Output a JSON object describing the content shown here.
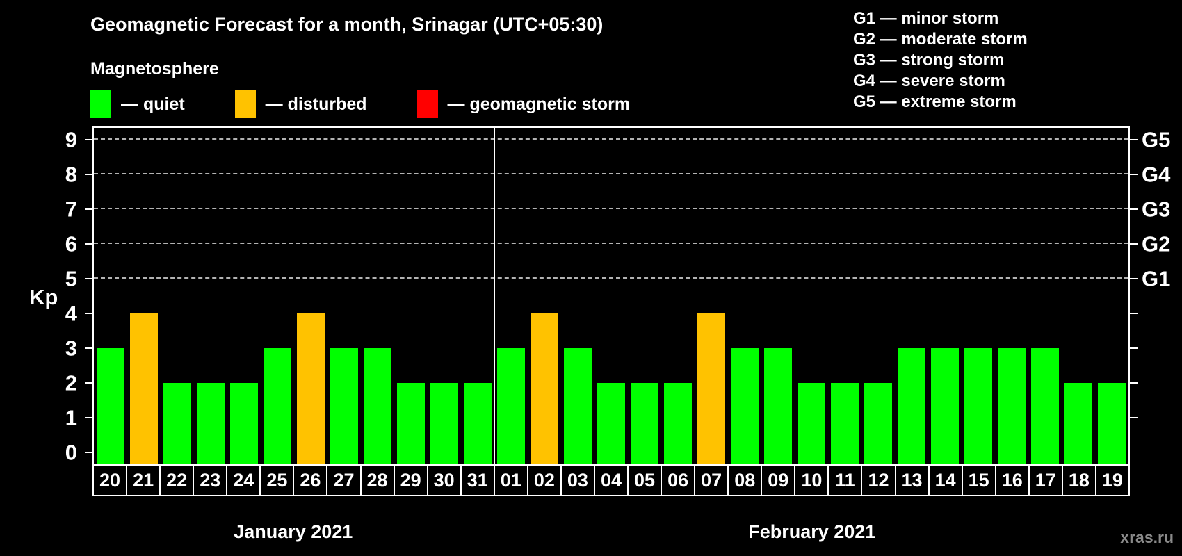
{
  "title": "Geomagnetic Forecast for a month, Srinagar (UTC+05:30)",
  "subtitle": "Magnetosphere",
  "joiner": "—",
  "legend": {
    "items": [
      {
        "name": "quiet",
        "label": "quiet",
        "color": "#00ff00"
      },
      {
        "name": "disturbed",
        "label": "disturbed",
        "color": "#ffc200"
      },
      {
        "name": "storm",
        "label": "geomagnetic storm",
        "color": "#ff0000"
      }
    ]
  },
  "storm_scale_legend": [
    {
      "code": "G1",
      "label": "minor storm"
    },
    {
      "code": "G2",
      "label": "moderate storm"
    },
    {
      "code": "G3",
      "label": "strong storm"
    },
    {
      "code": "G4",
      "label": "severe storm"
    },
    {
      "code": "G5",
      "label": "extreme storm"
    }
  ],
  "watermark": "xras.ru",
  "chart_data": {
    "type": "bar",
    "ylabel": "Kp",
    "ylim": [
      0,
      9
    ],
    "yticks": [
      0,
      1,
      2,
      3,
      4,
      5,
      6,
      7,
      8,
      9
    ],
    "right_ticks": [
      1,
      2,
      3,
      4,
      5,
      6,
      7,
      8,
      9
    ],
    "right_axis_labels": [
      {
        "value": 5,
        "label": "G1"
      },
      {
        "value": 6,
        "label": "G2"
      },
      {
        "value": 7,
        "label": "G3"
      },
      {
        "value": 8,
        "label": "G4"
      },
      {
        "value": 9,
        "label": "G5"
      }
    ],
    "gridlines": [
      5,
      6,
      7,
      8,
      9
    ],
    "grid_style": "dashed",
    "legend_position": "top",
    "months": [
      {
        "label": "January 2021",
        "days": 12
      },
      {
        "label": "February 2021",
        "days": 19
      }
    ],
    "categories": [
      "20",
      "21",
      "22",
      "23",
      "24",
      "25",
      "26",
      "27",
      "28",
      "29",
      "30",
      "31",
      "01",
      "02",
      "03",
      "04",
      "05",
      "06",
      "07",
      "08",
      "09",
      "10",
      "11",
      "12",
      "13",
      "14",
      "15",
      "16",
      "17",
      "18",
      "19"
    ],
    "values": [
      3,
      4,
      2,
      2,
      2,
      3,
      4,
      3,
      3,
      2,
      2,
      2,
      3,
      4,
      3,
      2,
      2,
      2,
      4,
      3,
      3,
      2,
      2,
      2,
      3,
      3,
      3,
      3,
      3,
      2,
      2
    ],
    "statuses": [
      "quiet",
      "disturbed",
      "quiet",
      "quiet",
      "quiet",
      "quiet",
      "disturbed",
      "quiet",
      "quiet",
      "quiet",
      "quiet",
      "quiet",
      "quiet",
      "disturbed",
      "quiet",
      "quiet",
      "quiet",
      "quiet",
      "disturbed",
      "quiet",
      "quiet",
      "quiet",
      "quiet",
      "quiet",
      "quiet",
      "quiet",
      "quiet",
      "quiet",
      "quiet",
      "quiet",
      "quiet"
    ],
    "colors": {
      "quiet": "#00ff00",
      "disturbed": "#ffc200",
      "storm": "#ff0000"
    }
  }
}
